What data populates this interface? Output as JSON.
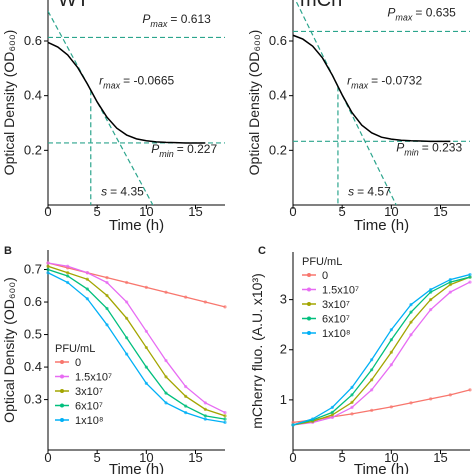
{
  "chart_data": [
    {
      "type": "line",
      "title": "WT",
      "y_label": "Optical Density (OD₆₀₀)",
      "x_label": "Time (h)",
      "x": [
        0,
        1,
        2,
        3,
        4,
        5,
        6,
        7,
        8,
        9,
        10,
        11,
        12,
        13,
        14,
        15,
        16
      ],
      "series": [
        {
          "color": "#000000",
          "values": [
            0.595,
            0.578,
            0.549,
            0.504,
            0.443,
            0.377,
            0.321,
            0.281,
            0.256,
            0.242,
            0.235,
            0.231,
            0.229,
            0.228,
            0.227,
            0.227,
            0.227
          ]
        }
      ],
      "xlim": [
        0,
        18
      ],
      "ylim": [
        0,
        0.75
      ],
      "xticks": [
        0,
        5,
        10,
        15
      ],
      "yticks": [
        0.2,
        0.4,
        0.6
      ],
      "annotations": {
        "p_max": {
          "symbol": "P",
          "subscript": "max",
          "text": "= 0.613",
          "value": 0.613
        },
        "r_max": {
          "symbol": "r",
          "subscript": "max",
          "text": "= -0.0665",
          "value": -0.0665
        },
        "p_min": {
          "symbol": "P",
          "subscript": "min",
          "text": "= 0.227",
          "value": 0.227
        },
        "s": {
          "symbol": "s",
          "text": "= 4.35",
          "value": 4.35
        }
      }
    },
    {
      "type": "line",
      "title": "mCh",
      "y_label": "Optical Density (OD₆₀₀)",
      "x_label": "Time (h)",
      "x": [
        0,
        1,
        2,
        3,
        4,
        5,
        6,
        7,
        8,
        9,
        10,
        11,
        12,
        13,
        14,
        15,
        16
      ],
      "series": [
        {
          "color": "#000000",
          "values": [
            0.621,
            0.607,
            0.581,
            0.538,
            0.475,
            0.403,
            0.338,
            0.292,
            0.264,
            0.248,
            0.241,
            0.237,
            0.235,
            0.234,
            0.233,
            0.233,
            0.233
          ]
        }
      ],
      "xlim": [
        0,
        18
      ],
      "ylim": [
        0,
        0.75
      ],
      "xticks": [
        0,
        5,
        10,
        15
      ],
      "yticks": [
        0.2,
        0.4,
        0.6
      ],
      "annotations": {
        "p_max": {
          "symbol": "P",
          "subscript": "max",
          "text": "= 0.635",
          "value": 0.635
        },
        "r_max": {
          "symbol": "r",
          "subscript": "max",
          "text": "= -0.0732",
          "value": -0.0732
        },
        "p_min": {
          "symbol": "P",
          "subscript": "min",
          "text": "= 0.233",
          "value": 0.233
        },
        "s": {
          "symbol": "s",
          "text": "= 4.57",
          "value": 4.57
        }
      }
    },
    {
      "type": "line",
      "panel": "B",
      "y_label": "Optical Density (OD₆₀₀)",
      "x_label": "Time (h)",
      "legend_title": "PFU/mL",
      "x": [
        0,
        2,
        4,
        6,
        8,
        10,
        12,
        14,
        16,
        18
      ],
      "series": [
        {
          "name": "0",
          "color": "#f8766d",
          "values": [
            0.72,
            0.705,
            0.69,
            0.675,
            0.66,
            0.645,
            0.63,
            0.615,
            0.6,
            0.585
          ]
        },
        {
          "name": "1.5x10⁷",
          "color": "#e76bf3",
          "values": [
            0.72,
            0.71,
            0.69,
            0.66,
            0.6,
            0.51,
            0.42,
            0.34,
            0.29,
            0.26
          ]
        },
        {
          "name": "3x10⁷",
          "color": "#a3a500",
          "values": [
            0.71,
            0.69,
            0.67,
            0.62,
            0.55,
            0.46,
            0.37,
            0.31,
            0.27,
            0.25
          ]
        },
        {
          "name": "6x10⁷",
          "color": "#00bf7d",
          "values": [
            0.7,
            0.68,
            0.64,
            0.58,
            0.49,
            0.4,
            0.32,
            0.28,
            0.25,
            0.24
          ]
        },
        {
          "name": "1x10⁸",
          "color": "#00b0f6",
          "values": [
            0.69,
            0.66,
            0.61,
            0.53,
            0.44,
            0.35,
            0.29,
            0.26,
            0.24,
            0.23
          ]
        }
      ],
      "xlim": [
        0,
        18
      ],
      "ylim": [
        0.145,
        0.76
      ],
      "xticks": [
        0,
        5,
        10,
        15
      ],
      "yticks": [
        0.3,
        0.4,
        0.5,
        0.6,
        0.7
      ]
    },
    {
      "type": "line",
      "panel": "C",
      "y_label": "mCherry fluo. (A.U. x10³)",
      "x_label": "Time (h)",
      "legend_title": "PFU/mL",
      "x": [
        0,
        2,
        4,
        6,
        8,
        10,
        12,
        14,
        16,
        18
      ],
      "series": [
        {
          "name": "0",
          "color": "#f8766d",
          "values": [
            0.55,
            0.6,
            0.66,
            0.72,
            0.79,
            0.86,
            0.94,
            1.02,
            1.1,
            1.2
          ]
        },
        {
          "name": "1.5x10⁷",
          "color": "#e76bf3",
          "values": [
            0.5,
            0.55,
            0.65,
            0.85,
            1.2,
            1.7,
            2.3,
            2.8,
            3.15,
            3.35
          ]
        },
        {
          "name": "3x10⁷",
          "color": "#a3a500",
          "values": [
            0.5,
            0.57,
            0.7,
            0.95,
            1.4,
            1.95,
            2.55,
            3.0,
            3.3,
            3.45
          ]
        },
        {
          "name": "6x10⁷",
          "color": "#00bf7d",
          "values": [
            0.5,
            0.6,
            0.75,
            1.1,
            1.6,
            2.2,
            2.75,
            3.15,
            3.35,
            3.45
          ]
        },
        {
          "name": "1x10⁸",
          "color": "#00b0f6",
          "values": [
            0.5,
            0.62,
            0.85,
            1.25,
            1.8,
            2.4,
            2.9,
            3.2,
            3.4,
            3.5
          ]
        }
      ],
      "xlim": [
        0,
        18
      ],
      "ylim": [
        0,
        3.95
      ],
      "xticks": [
        0,
        5,
        10,
        15
      ],
      "yticks": [
        1,
        2,
        3
      ]
    }
  ]
}
